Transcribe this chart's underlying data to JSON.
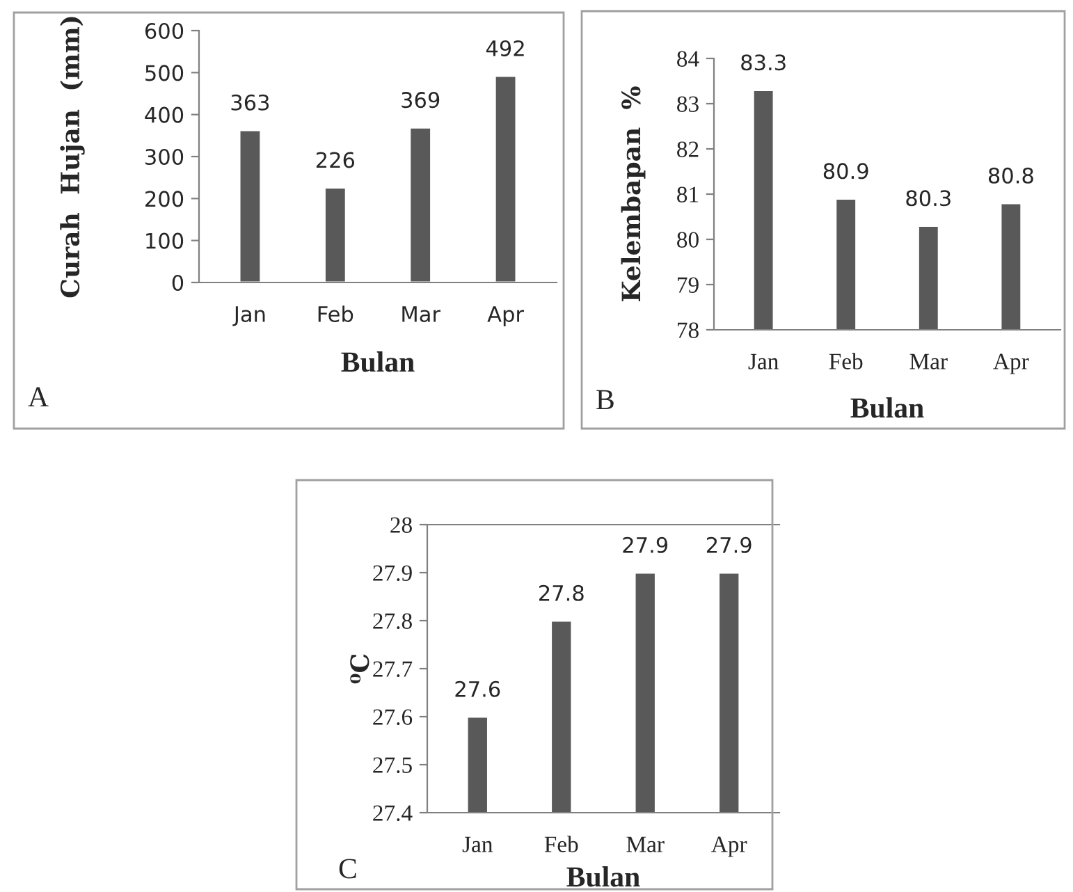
{
  "chart_data": [
    {
      "type": "bar",
      "categories": [
        "Jan",
        "Feb",
        "Mar",
        "Apr"
      ],
      "values": [
        363,
        226,
        369,
        492
      ],
      "color": "#595959",
      "data_labels": true,
      "xlabel": "Bulan",
      "ylabel": "Curah  Hujan  (mm)",
      "ylim": [
        0,
        600
      ],
      "yticks": [
        0,
        100,
        200,
        300,
        400,
        500,
        600
      ],
      "grid": false,
      "annotations": [
        "A"
      ]
    },
    {
      "type": "bar",
      "categories": [
        "Jan",
        "Feb",
        "Mar",
        "Apr"
      ],
      "values": [
        83.3,
        80.9,
        80.3,
        80.8
      ],
      "color": "#595959",
      "data_labels": true,
      "xlabel": "Bulan",
      "ylabel": "Kelembapan  %",
      "ylim": [
        78,
        84
      ],
      "yticks": [
        78,
        79,
        80,
        81,
        82,
        83,
        84
      ],
      "grid": false,
      "annotations": [
        "B"
      ]
    },
    {
      "type": "bar",
      "categories": [
        "Jan",
        "Feb",
        "Mar",
        "Apr"
      ],
      "values": [
        27.6,
        27.8,
        27.9,
        27.9
      ],
      "color": "#595959",
      "data_labels": true,
      "xlabel": "Bulan",
      "ylabel": "⁰C",
      "ylim": [
        27.4,
        28
      ],
      "yticks": [
        27.4,
        27.5,
        27.6,
        27.7,
        27.8,
        27.9,
        28
      ],
      "grid": false,
      "annotations": [
        "C"
      ]
    }
  ]
}
